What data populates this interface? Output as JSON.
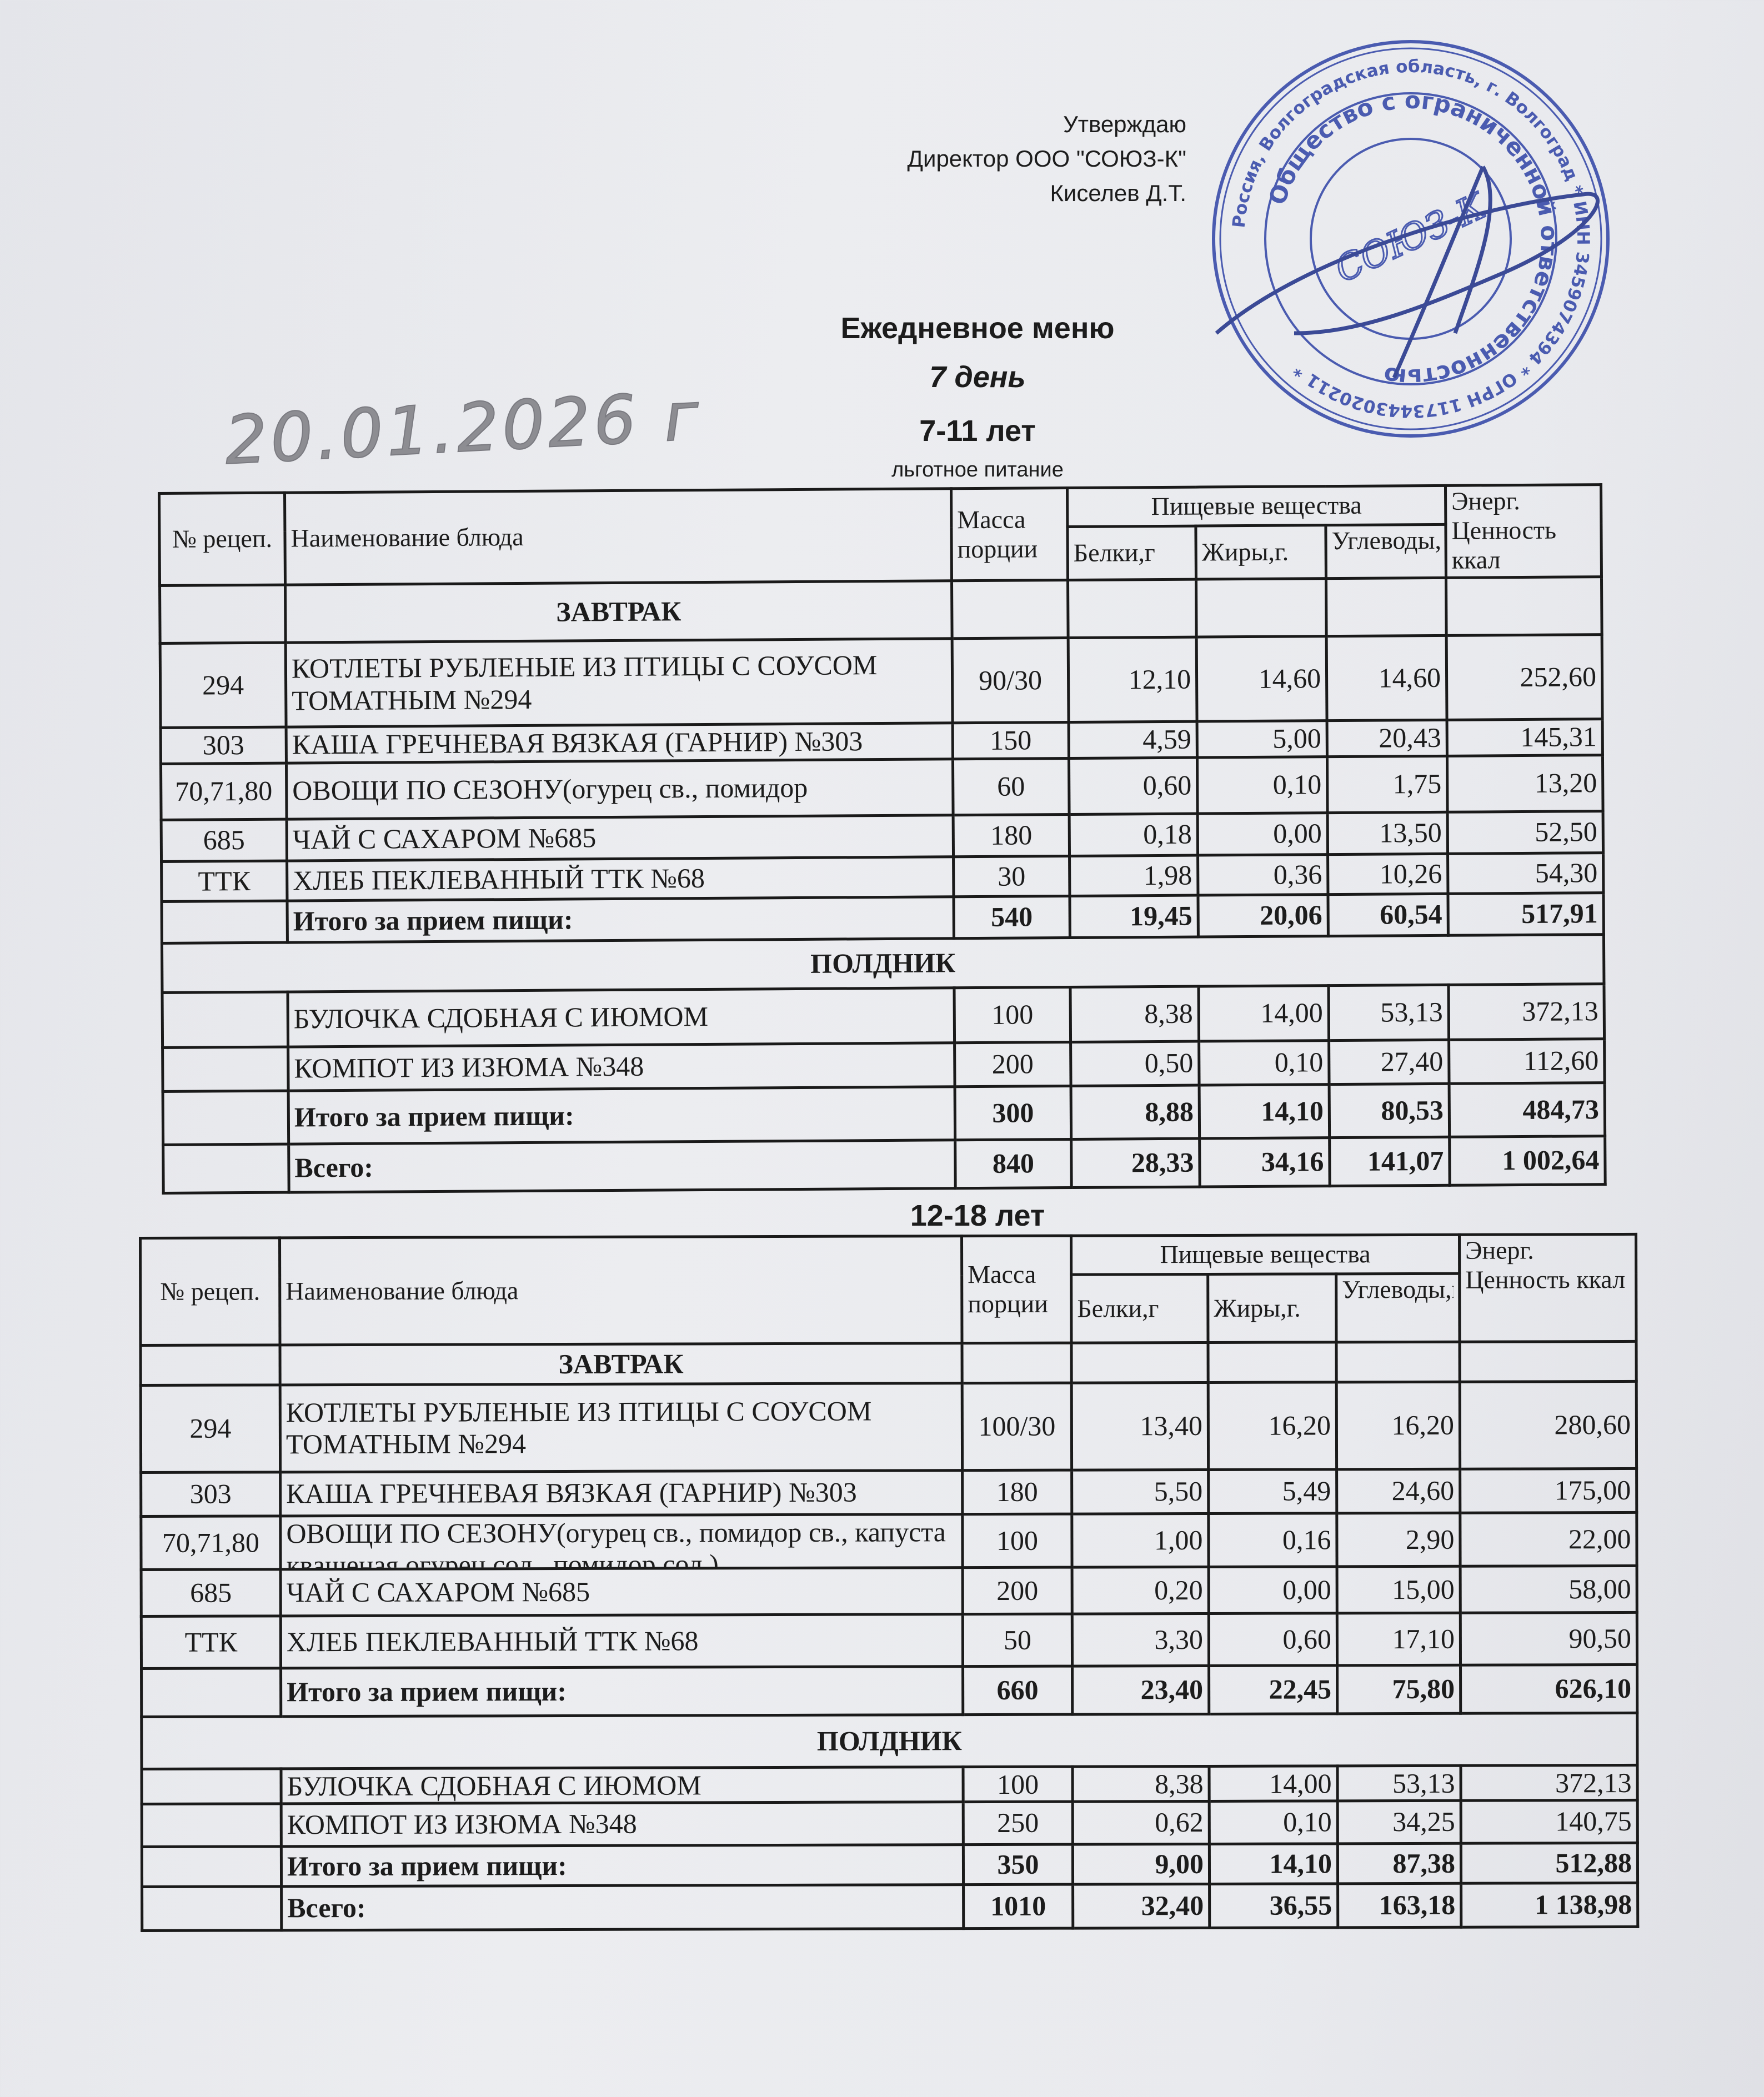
{
  "approval": {
    "approve_label": "Утверждаю",
    "director": "Директор ООО \"СОЮЗ-К\"",
    "signer": "Киселев Д.Т."
  },
  "stamp": {
    "outer_text": "Россия, Волгоградская область, г. Волгоград * ИНН 3459074394 * ОГРН 1173443020211 *",
    "inner_text": "Общество с ограниченной ответственностью",
    "center_text": "СОЮЗ-К",
    "color": "#3548a8"
  },
  "header": {
    "title": "Ежедневное меню",
    "day": "7 день",
    "age_group_1": "7-11 лет",
    "subtitle": "льготное питание",
    "handwritten_date": "20.01.2026 г",
    "age_group_2": "12-18 лет"
  },
  "columns": {
    "recipe": "№ рецеп.",
    "name": "Наименование блюда",
    "mass": "Масса порции",
    "nutrients": "Пищевые вещества",
    "protein": "Белки,г",
    "fat": "Жиры,г.",
    "carbs": "Углеводы,г",
    "energy": "Энерг. Ценность ккал"
  },
  "tables": [
    {
      "rows": [
        {
          "type": "section",
          "label": "ЗАВТРАК",
          "span": "name"
        },
        {
          "type": "item",
          "recipe": "294",
          "name": "КОТЛЕТЫ РУБЛЕНЫЕ ИЗ ПТИЦЫ С СОУСОМ ТОМАТНЫМ №294",
          "mass": "90/30",
          "protein": "12,10",
          "fat": "14,60",
          "carbs": "14,60",
          "energy": "252,60"
        },
        {
          "type": "item",
          "recipe": "303",
          "name": "КАША ГРЕЧНЕВАЯ ВЯЗКАЯ (ГАРНИР) №303",
          "mass": "150",
          "protein": "4,59",
          "fat": "5,00",
          "carbs": "20,43",
          "energy": "145,31"
        },
        {
          "type": "item",
          "recipe": "70,71,80",
          "name": "ОВОЩИ ПО СЕЗОНУ(огурец св., помидор",
          "mass": "60",
          "protein": "0,60",
          "fat": "0,10",
          "carbs": "1,75",
          "energy": "13,20"
        },
        {
          "type": "item",
          "recipe": "685",
          "name": "ЧАЙ С САХАРОМ №685",
          "mass": "180",
          "protein": "0,18",
          "fat": "0,00",
          "carbs": "13,50",
          "energy": "52,50"
        },
        {
          "type": "item",
          "recipe": "ТТК",
          "name": "ХЛЕБ ПЕКЛЕВАННЫЙ ТТК №68",
          "mass": "30",
          "protein": "1,98",
          "fat": "0,36",
          "carbs": "10,26",
          "energy": "54,30"
        },
        {
          "type": "total",
          "recipe": "",
          "name": "Итого за прием пищи:",
          "mass": "540",
          "protein": "19,45",
          "fat": "20,06",
          "carbs": "60,54",
          "energy": "517,91"
        },
        {
          "type": "section",
          "label": "ПОЛДНИК",
          "span": "all"
        },
        {
          "type": "item",
          "recipe": "",
          "name": "БУЛОЧКА СДОБНАЯ С ИЮМОМ",
          "mass": "100",
          "protein": "8,38",
          "fat": "14,00",
          "carbs": "53,13",
          "energy": "372,13"
        },
        {
          "type": "item",
          "recipe": "",
          "name": "КОМПОТ ИЗ ИЗЮМА №348",
          "mass": "200",
          "protein": "0,50",
          "fat": "0,10",
          "carbs": "27,40",
          "energy": "112,60"
        },
        {
          "type": "total",
          "recipe": "",
          "name": "Итого за прием пищи:",
          "mass": "300",
          "protein": "8,88",
          "fat": "14,10",
          "carbs": "80,53",
          "energy": "484,73"
        },
        {
          "type": "total",
          "recipe": "",
          "name": "Всего:",
          "mass": "840",
          "protein": "28,33",
          "fat": "34,16",
          "carbs": "141,07",
          "energy": "1 002,64"
        }
      ]
    },
    {
      "rows": [
        {
          "type": "section",
          "label": "ЗАВТРАК",
          "span": "name"
        },
        {
          "type": "item",
          "recipe": "294",
          "name": "КОТЛЕТЫ РУБЛЕНЫЕ ИЗ ПТИЦЫ С СОУСОМ ТОМАТНЫМ №294",
          "mass": "100/30",
          "protein": "13,40",
          "fat": "16,20",
          "carbs": "16,20",
          "energy": "280,60"
        },
        {
          "type": "item",
          "recipe": "303",
          "name": "КАША ГРЕЧНЕВАЯ ВЯЗКАЯ (ГАРНИР) №303",
          "mass": "180",
          "protein": "5,50",
          "fat": "5,49",
          "carbs": "24,60",
          "energy": "175,00"
        },
        {
          "type": "item",
          "recipe": "70,71,80",
          "name": "ОВОЩИ ПО СЕЗОНУ(огурец св., помидор св., капуста квашеная огурец сол., помидор сол.)",
          "mass": "100",
          "protein": "1,00",
          "fat": "0,16",
          "carbs": "2,90",
          "energy": "22,00"
        },
        {
          "type": "item",
          "recipe": "685",
          "name": "ЧАЙ С САХАРОМ №685",
          "mass": "200",
          "protein": "0,20",
          "fat": "0,00",
          "carbs": "15,00",
          "energy": "58,00"
        },
        {
          "type": "item",
          "recipe": "ТТК",
          "name": "ХЛЕБ ПЕКЛЕВАННЫЙ ТТК №68",
          "mass": "50",
          "protein": "3,30",
          "fat": "0,60",
          "carbs": "17,10",
          "energy": "90,50"
        },
        {
          "type": "total",
          "recipe": "",
          "name": "Итого за прием пищи:",
          "mass": "660",
          "protein": "23,40",
          "fat": "22,45",
          "carbs": "75,80",
          "energy": "626,10"
        },
        {
          "type": "section",
          "label": "ПОЛДНИК",
          "span": "all"
        },
        {
          "type": "item",
          "recipe": "",
          "name": "БУЛОЧКА СДОБНАЯ С ИЮМОМ",
          "mass": "100",
          "protein": "8,38",
          "fat": "14,00",
          "carbs": "53,13",
          "energy": "372,13"
        },
        {
          "type": "item",
          "recipe": "",
          "name": "КОМПОТ ИЗ ИЗЮМА №348",
          "mass": "250",
          "protein": "0,62",
          "fat": "0,10",
          "carbs": "34,25",
          "energy": "140,75"
        },
        {
          "type": "total",
          "recipe": "",
          "name": "Итого за прием пищи:",
          "mass": "350",
          "protein": "9,00",
          "fat": "14,10",
          "carbs": "87,38",
          "energy": "512,88"
        },
        {
          "type": "total",
          "recipe": "",
          "name": "Всего:",
          "mass": "1010",
          "protein": "32,40",
          "fat": "36,55",
          "carbs": "163,18",
          "energy": "1 138,98"
        }
      ]
    }
  ]
}
